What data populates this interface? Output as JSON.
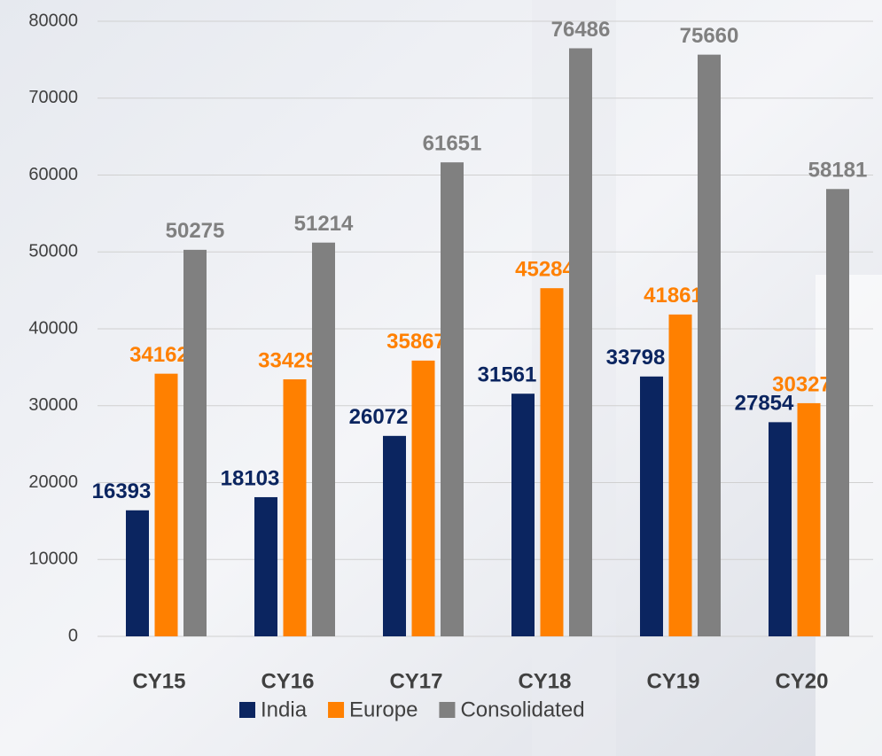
{
  "chart_data": {
    "type": "bar",
    "categories": [
      "CY15",
      "CY16",
      "CY17",
      "CY18",
      "CY19",
      "CY20"
    ],
    "series": [
      {
        "name": "India",
        "color": "#0b2560",
        "values": [
          16393,
          18103,
          26072,
          31561,
          33798,
          27854
        ]
      },
      {
        "name": "Europe",
        "color": "#ff8000",
        "values": [
          34162,
          33429,
          35867,
          45284,
          41861,
          30327
        ]
      },
      {
        "name": "Consolidated",
        "color": "#808080",
        "values": [
          50275,
          51214,
          61651,
          76486,
          75660,
          58181
        ]
      }
    ],
    "ylim": [
      0,
      80000
    ],
    "yticks": [
      0,
      10000,
      20000,
      30000,
      40000,
      50000,
      60000,
      70000,
      80000
    ],
    "grid": true,
    "legend": "bottom"
  }
}
